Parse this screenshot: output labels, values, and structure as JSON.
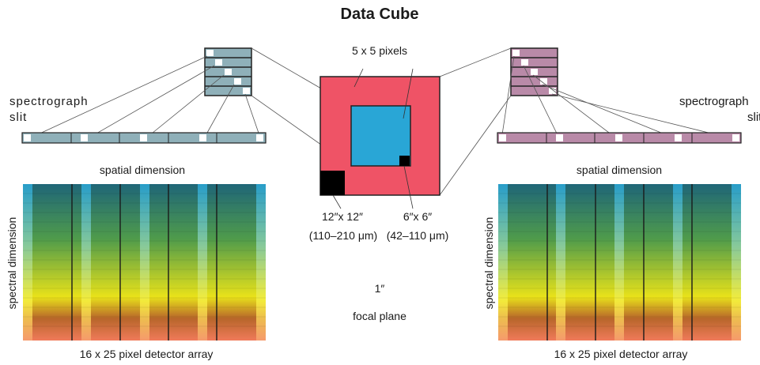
{
  "title": "Data Cube",
  "left": {
    "slit_label_1": "spectrograph",
    "slit_label_2": "slit",
    "spatial_label": "spatial dimension",
    "spectral_label": "spectral dimension",
    "array_label": "16 x 25 pixel detector array"
  },
  "right": {
    "slit_label_1": "spectrograph",
    "slit_label_2": "slit",
    "spatial_label": "spatial dimension",
    "spectral_label": "spectral dimension",
    "array_label": "16 x 25 pixel detector array"
  },
  "center": {
    "pixels_label": "5 x 5 pixels",
    "big_pixel_label": "12″x 12″",
    "big_pixel_range": "(110–210 μm)",
    "small_pixel_label": "6″x 6″",
    "small_pixel_range": "(42–110 μm)",
    "scale_label": "1″",
    "focal_plane_label": "focal plane"
  },
  "colors": {
    "focal_plane": "#ef5366",
    "field": "#29a6d6",
    "slit_left": "#8fb0b9",
    "slit_right": "#b98aa8",
    "spectrum_top": "#1f6678",
    "spectrum_mid": "#e8e21a",
    "spectrum_bottom": "#f07a5a"
  }
}
